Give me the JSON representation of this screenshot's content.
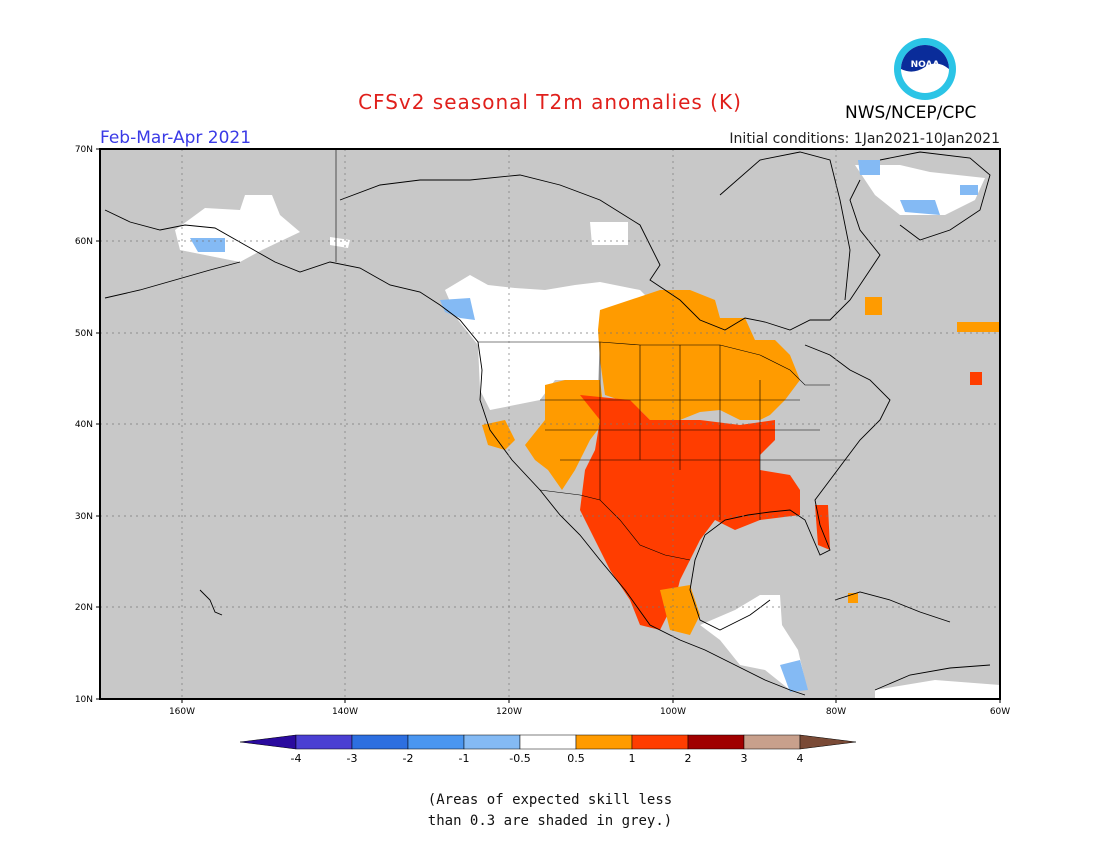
{
  "title": "CFSv2 seasonal T2m anomalies (K)",
  "period": "Feb-Mar-Apr 2021",
  "initial_conditions": "Initial conditions: 1Jan2021-10Jan2021",
  "agency": "NWS/NCEP/CPC",
  "logo_text": "NOAA",
  "skill_note_line1": "(Areas of expected skill less",
  "skill_note_line2": "than 0.3 are shaded in grey.)",
  "map": {
    "lat_labels": [
      "70N",
      "60N",
      "50N",
      "40N",
      "30N",
      "20N",
      "10N"
    ],
    "lon_labels": [
      "160W",
      "140W",
      "120W",
      "100W",
      "80W",
      "60W"
    ],
    "extent": {
      "lon_min": -170,
      "lon_max": -60,
      "lat_min": 10,
      "lat_max": 70
    },
    "grey_color": "#c8c8c8"
  },
  "colorbar": {
    "labels": [
      "-4",
      "-3",
      "-2",
      "-1",
      "-0.5",
      "0.5",
      "1",
      "2",
      "3",
      "4"
    ],
    "colors": [
      "#2a0a9e",
      "#4a3fd2",
      "#2d6fe0",
      "#4a96f0",
      "#84baf4",
      "#ffffff",
      "#ff9b00",
      "#ff3d00",
      "#a00000",
      "#c8a08c",
      "#7a4a36"
    ]
  }
}
